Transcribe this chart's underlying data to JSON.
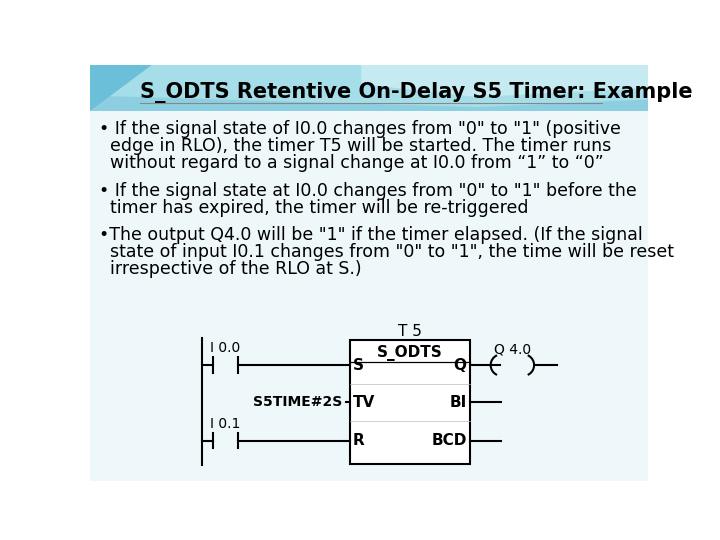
{
  "title": "S_ODTS Retentive On-Delay S5 Timer: Example",
  "title_fontsize": 15,
  "title_color": "#000000",
  "bullet1_line1": "• If the signal state of I0.0 changes from \"0\" to \"1\" (positive",
  "bullet1_line2": "  edge in RLO), the timer T5 will be started. The timer runs",
  "bullet1_line3": "  without regard to a signal change at I0.0 from “1” to “0”",
  "bullet2_line1": "• If the signal state at I0.0 changes from \"0\" to \"1\" before the",
  "bullet2_line2": "  timer has expired, the timer will be re-triggered",
  "bullet3_line1": "•The output Q4.0 will be \"1\" if the timer elapsed. (If the signal",
  "bullet3_line2": "  state of input I0.1 changes from \"0\" to \"1\", the time will be reset",
  "bullet3_line3": "  irrespective of the RLO at S.)",
  "text_fontsize": 12.5,
  "text_color": "#000000",
  "bullet_color": "#CC0000",
  "ladder_line_color": "#000000",
  "header_color1": "#7ECFE8",
  "header_color2": "#A8DDE8",
  "header_color3": "#C8EAF0",
  "bg_left_color": "#D8EFF5",
  "bg_color": "#E8F4F8"
}
